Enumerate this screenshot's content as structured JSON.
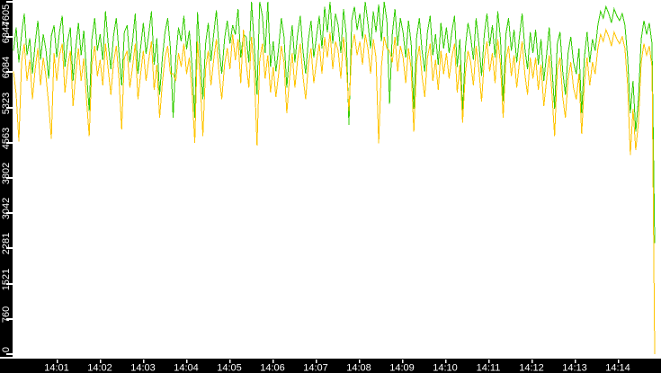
{
  "window": {
    "background": "#ffffff"
  },
  "chart_data": {
    "type": "line",
    "title": "",
    "grid": false,
    "legend": null,
    "background": "#ffffff",
    "axis": {
      "bar_color": "#000000",
      "tick_color": "#ffffff",
      "label_color": "#ffffff"
    },
    "ylim": [
      0,
      7605
    ],
    "y_tick_values": [
      0,
      760,
      1521,
      2281,
      3042,
      3802,
      4563,
      5323,
      6084,
      6844,
      7605
    ],
    "y_tick_labels": [
      "0",
      "760",
      "1521",
      "2281",
      "3042",
      "3802",
      "4563",
      "5323",
      "6084",
      "6844",
      "7605"
    ],
    "x_tick_labels": [
      "14:01",
      "14:02",
      "14:03",
      "14:04",
      "14:05",
      "14:06",
      "14:07",
      "14:08",
      "14:09",
      "14:10",
      "14:11",
      "14:12",
      "14:13",
      "14:14"
    ],
    "series": [
      {
        "name": "green-series",
        "color": "#33cc00",
        "values": [
          6550,
          7050,
          6300,
          6900,
          7350,
          6450,
          6820,
          6050,
          6700,
          7200,
          6350,
          6900,
          6570,
          5950,
          6870,
          7100,
          6400,
          6950,
          7300,
          6200,
          6750,
          7050,
          5900,
          6600,
          7150,
          6450,
          6980,
          6100,
          5250,
          6800,
          7250,
          6550,
          6900,
          6350,
          7400,
          6700,
          6150,
          6880,
          7250,
          6500,
          5800,
          6950,
          7100,
          6300,
          6750,
          7350,
          6050,
          6620,
          7150,
          6480,
          6900,
          7400,
          6250,
          6820,
          5600,
          6380,
          6950,
          7250,
          6600,
          5100,
          6400,
          7050,
          6750,
          7300,
          6580,
          6980,
          6200,
          5100,
          7380,
          6450,
          5500,
          6700,
          7150,
          6320,
          6900,
          7420,
          6600,
          6050,
          6800,
          7200,
          6700,
          7100,
          6900,
          7450,
          6400,
          6900,
          6850,
          6300,
          7605,
          6650,
          5600,
          7605,
          7300,
          6500,
          7605,
          6200,
          6750,
          6100,
          6600,
          7250,
          6850,
          5750,
          6500,
          7100,
          6300,
          6900,
          7300,
          6550,
          6050,
          6780,
          7200,
          6400,
          6850,
          7300,
          6600,
          7500,
          6950,
          7605,
          6700,
          7350,
          7100,
          6500,
          7450,
          6900,
          4950,
          7200,
          7500,
          7000,
          7350,
          6800,
          7605,
          7150,
          6600,
          7400,
          6950,
          7550,
          6750,
          7605,
          7200,
          5400,
          6900,
          7450,
          6650,
          7250,
          6950,
          6400,
          7200,
          6700,
          5300,
          6850,
          7250,
          6550,
          6100,
          6950,
          7300,
          6450,
          6900,
          6250,
          7150,
          6600,
          7050,
          6500,
          6950,
          7300,
          6200,
          6800,
          5200,
          6600,
          7150,
          6850,
          6350,
          7250,
          6700,
          6000,
          6900,
          7350,
          6650,
          7100,
          6400,
          7400,
          6800,
          5465,
          6900,
          7250,
          6550,
          7000,
          6300,
          6850,
          7350,
          6600,
          6150,
          6950,
          6500,
          7000,
          6250,
          6800,
          5900,
          6450,
          7050,
          6200,
          5300,
          6700,
          6950,
          6100,
          5600,
          6500,
          6850,
          6300,
          6050,
          6600,
          5200,
          6400,
          6950,
          6300,
          6800,
          6550,
          7100,
          7400,
          7250,
          7500,
          7350,
          7150,
          7450,
          7300,
          7200,
          7350,
          7100,
          6400,
          5200,
          5900,
          4800,
          5500,
          6800,
          7200,
          6900,
          7150,
          6700,
          2400
        ]
      },
      {
        "name": "orange-series",
        "color": "#ffc400",
        "values": [
          6100,
          5600,
          4590,
          6300,
          6700,
          5900,
          6350,
          5500,
          6150,
          6600,
          5800,
          6400,
          6000,
          5400,
          4650,
          6500,
          5900,
          6450,
          6700,
          5650,
          6200,
          6550,
          5350,
          6050,
          6600,
          5900,
          6380,
          5500,
          4700,
          6250,
          6650,
          6000,
          6350,
          5800,
          6700,
          6150,
          5600,
          6300,
          6650,
          5950,
          4850,
          6400,
          6550,
          5750,
          6200,
          6700,
          5500,
          6050,
          6550,
          5900,
          6350,
          6750,
          5700,
          6250,
          5100,
          5850,
          6400,
          6650,
          6050,
          6050,
          5900,
          6500,
          6200,
          6700,
          6050,
          6400,
          5650,
          4563,
          6750,
          5900,
          4700,
          6150,
          6550,
          5800,
          6350,
          6800,
          6050,
          5500,
          6250,
          6600,
          6150,
          6900,
          6350,
          6800,
          5850,
          7000,
          6300,
          5750,
          6850,
          6100,
          4500,
          6350,
          6700,
          5950,
          6450,
          5650,
          6200,
          5550,
          6050,
          6650,
          6300,
          5200,
          5950,
          6500,
          5750,
          6350,
          6700,
          6000,
          5500,
          6250,
          6600,
          5850,
          6300,
          6700,
          6050,
          6850,
          6400,
          6950,
          6150,
          6750,
          6550,
          5950,
          6850,
          6300,
          5250,
          6600,
          6900,
          6450,
          6750,
          6250,
          6900,
          6600,
          6050,
          6800,
          6400,
          4550,
          6200,
          6850,
          6600,
          6550,
          6300,
          6850,
          6100,
          6650,
          6400,
          5850,
          6600,
          6150,
          4800,
          6300,
          6650,
          6000,
          5550,
          6400,
          6700,
          5900,
          6350,
          5700,
          6550,
          6050,
          6500,
          5950,
          6400,
          6700,
          5650,
          6250,
          5000,
          6050,
          6550,
          6300,
          5800,
          6650,
          6150,
          5450,
          6350,
          6750,
          6100,
          6500,
          5850,
          6800,
          6250,
          5100,
          6350,
          6650,
          6000,
          6450,
          5750,
          6300,
          6750,
          6050,
          5600,
          6400,
          5950,
          6400,
          5700,
          6250,
          5350,
          5900,
          6450,
          5650,
          4700,
          6150,
          6400,
          5550,
          5100,
          5950,
          6300,
          5750,
          5500,
          6050,
          4750,
          5850,
          6400,
          5800,
          6300,
          6050,
          6600,
          6900,
          6750,
          7000,
          6850,
          6650,
          6950,
          6800,
          6700,
          6850,
          6600,
          5800,
          4300,
          5300,
          4400,
          5000,
          6300,
          6700,
          6450,
          6650,
          6200,
          0
        ]
      }
    ]
  }
}
